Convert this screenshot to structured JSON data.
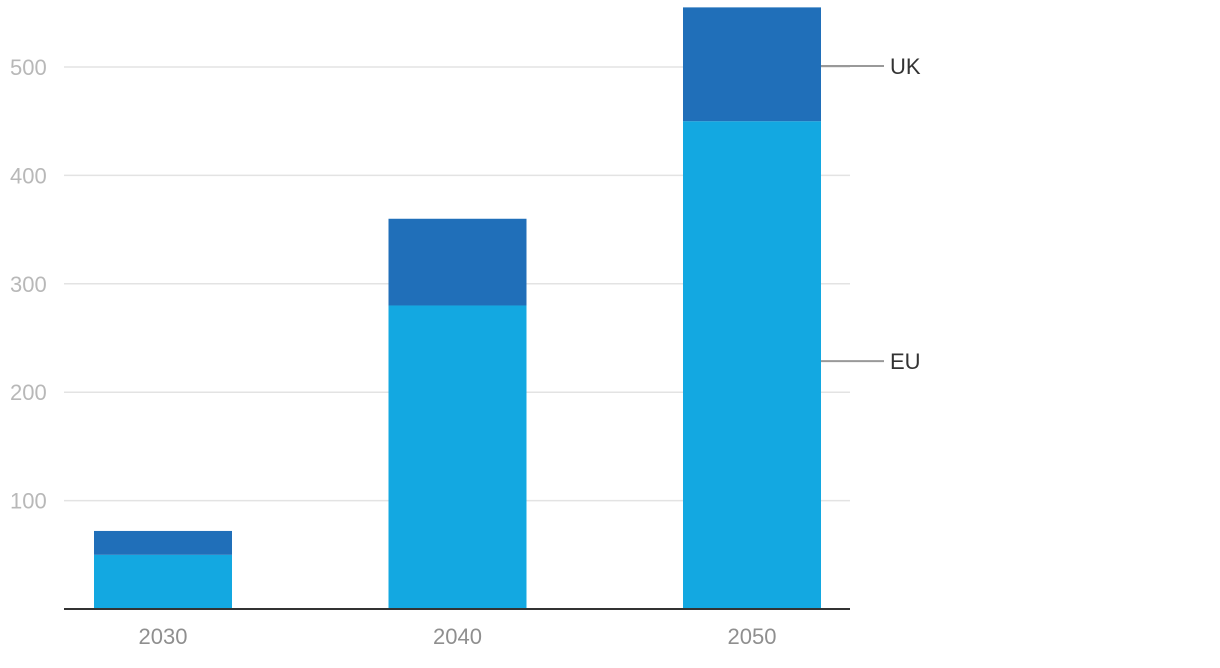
{
  "chart_data": {
    "type": "bar",
    "stacked": true,
    "categories": [
      "2030",
      "2040",
      "2050"
    ],
    "series": [
      {
        "name": "EU",
        "values": [
          50,
          280,
          450
        ],
        "color": "#13a8e1"
      },
      {
        "name": "UK",
        "values": [
          22,
          80,
          105
        ],
        "color": "#206fb9"
      }
    ],
    "y_ticks": [
      100,
      200,
      300,
      400,
      500
    ],
    "ylim": [
      0,
      555
    ],
    "grid": true,
    "legend": "right, inline labels with leader lines",
    "title": "",
    "xlabel": "",
    "ylabel": ""
  },
  "colors": {
    "grid": "#e3e3e3",
    "axis": "#333333",
    "leader": "#999999"
  }
}
